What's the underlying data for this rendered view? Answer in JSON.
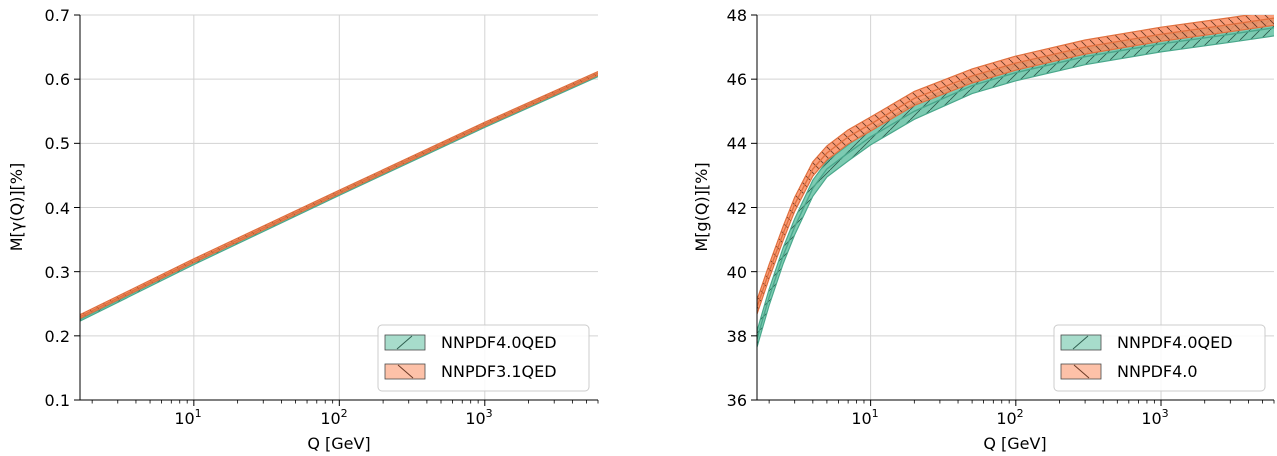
{
  "colors": {
    "qed_band": "#66c2a5",
    "qed_line": "#4aa88c",
    "ref_band": "#fc8d62",
    "ref_line": "#e0703f",
    "grid": "#d3d3d3",
    "legend_qed_patch": "#a7dccb",
    "legend_ref_patch": "#fdc1a8"
  },
  "chart_data": [
    {
      "type": "line",
      "xscale": "log",
      "xlim": [
        1.65,
        6000
      ],
      "ylim": [
        0.1,
        0.7
      ],
      "xlabel": "Q [GeV]",
      "ylabel": "M[γ(Q)][%]",
      "grid": true,
      "legend_position": "bottom-right",
      "x_ticks": [
        {
          "value": 10,
          "base": "10",
          "exp": "1"
        },
        {
          "value": 100,
          "base": "10",
          "exp": "2"
        },
        {
          "value": 1000,
          "base": "10",
          "exp": "3"
        }
      ],
      "y_ticks": [
        {
          "value": 0.1,
          "label": "0.1"
        },
        {
          "value": 0.2,
          "label": "0.2"
        },
        {
          "value": 0.3,
          "label": "0.3"
        },
        {
          "value": 0.4,
          "label": "0.4"
        },
        {
          "value": 0.5,
          "label": "0.5"
        },
        {
          "value": 0.6,
          "label": "0.6"
        },
        {
          "value": 0.7,
          "label": "0.7"
        }
      ],
      "series": [
        {
          "name": "NNPDF4.0QED",
          "hatch": "/",
          "x": [
            1.65,
            10,
            100,
            1000,
            6000
          ],
          "y": [
            0.226,
            0.314,
            0.422,
            0.528,
            0.607
          ],
          "band_halfwidth": 0.003
        },
        {
          "name": "NNPDF3.1QED",
          "hatch": "\\",
          "x": [
            1.65,
            10,
            100,
            1000,
            6000
          ],
          "y": [
            0.23,
            0.317,
            0.424,
            0.53,
            0.609
          ],
          "band_halfwidth": 0.003
        }
      ]
    },
    {
      "type": "line",
      "xscale": "log",
      "xlim": [
        1.65,
        6000
      ],
      "ylim": [
        36,
        48
      ],
      "xlabel": "Q [GeV]",
      "ylabel": "M[g(Q)][%]",
      "grid": true,
      "legend_position": "bottom-right",
      "x_ticks": [
        {
          "value": 10,
          "base": "10",
          "exp": "1"
        },
        {
          "value": 100,
          "base": "10",
          "exp": "2"
        },
        {
          "value": 1000,
          "base": "10",
          "exp": "3"
        }
      ],
      "y_ticks": [
        {
          "value": 36,
          "label": "36"
        },
        {
          "value": 38,
          "label": "38"
        },
        {
          "value": 40,
          "label": "40"
        },
        {
          "value": 42,
          "label": "42"
        },
        {
          "value": 44,
          "label": "44"
        },
        {
          "value": 46,
          "label": "46"
        },
        {
          "value": 48,
          "label": "48"
        }
      ],
      "series": [
        {
          "name": "NNPDF4.0QED",
          "hatch": "/",
          "x": [
            1.65,
            2,
            2.5,
            3,
            4,
            5,
            7,
            10,
            20,
            50,
            100,
            300,
            1000,
            3000,
            6000
          ],
          "y": [
            37.9,
            39.2,
            40.5,
            41.4,
            42.6,
            43.2,
            43.7,
            44.2,
            45.0,
            45.8,
            46.2,
            46.7,
            47.1,
            47.4,
            47.6
          ],
          "band_halfwidth": 0.25
        },
        {
          "name": "NNPDF4.0",
          "hatch": "\\",
          "x": [
            1.65,
            2,
            2.5,
            3,
            4,
            5,
            7,
            10,
            20,
            50,
            100,
            300,
            1000,
            3000,
            6000
          ],
          "y": [
            38.9,
            40.0,
            41.2,
            42.1,
            43.2,
            43.7,
            44.2,
            44.6,
            45.4,
            46.1,
            46.5,
            47.0,
            47.4,
            47.7,
            47.9
          ],
          "band_halfwidth": 0.22
        }
      ]
    }
  ]
}
